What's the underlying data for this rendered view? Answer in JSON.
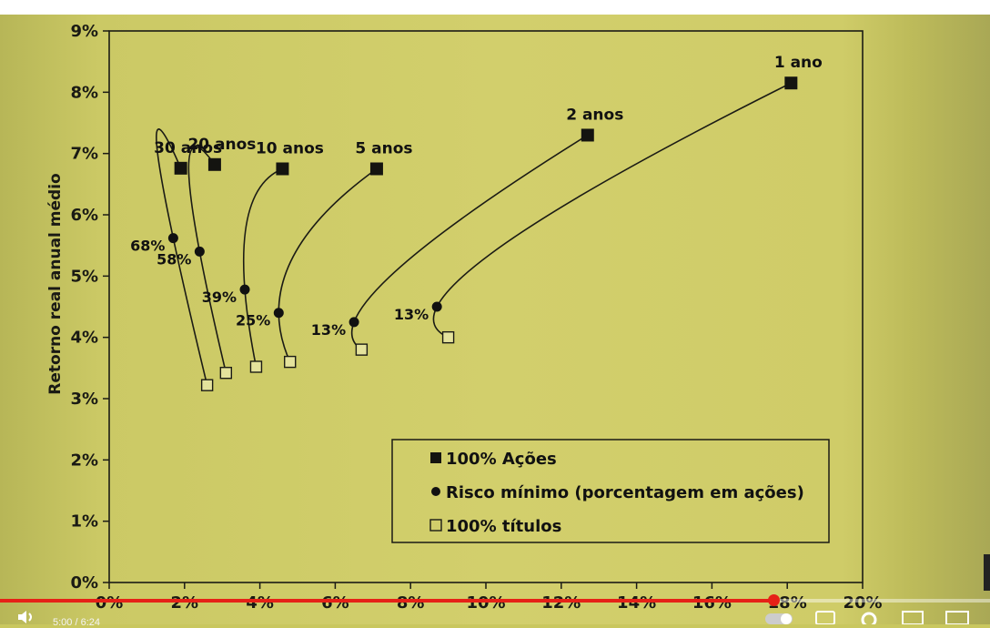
{
  "chart_data": {
    "type": "line",
    "title": "",
    "xlabel": "",
    "ylabel": "Retorno real anual médio",
    "xlim": [
      0,
      20
    ],
    "ylim": [
      0,
      9
    ],
    "x_ticks": [
      0,
      2,
      4,
      6,
      8,
      10,
      12,
      14,
      16,
      18,
      20
    ],
    "x_tick_labels": [
      "0%",
      "2%",
      "4%",
      "6%",
      "8%",
      "10%",
      "12%",
      "14%",
      "16%",
      "18%",
      "20%"
    ],
    "y_ticks": [
      0,
      1,
      2,
      3,
      4,
      5,
      6,
      7,
      8,
      9
    ],
    "y_tick_labels": [
      "0%",
      "1%",
      "2%",
      "3%",
      "4%",
      "5%",
      "6%",
      "7%",
      "8%",
      "9%"
    ],
    "grid": false,
    "legend_position": "bottom-right",
    "series": [
      {
        "name": "1 ano",
        "points": [
          [
            9.0,
            4.0
          ],
          [
            8.7,
            4.5
          ],
          [
            18.1,
            8.15
          ]
        ],
        "min_risk_label": "13%"
      },
      {
        "name": "2 anos",
        "points": [
          [
            6.7,
            3.8
          ],
          [
            6.5,
            4.25
          ],
          [
            12.7,
            7.3
          ]
        ],
        "min_risk_label": "13%"
      },
      {
        "name": "5 anos",
        "points": [
          [
            4.8,
            3.6
          ],
          [
            4.5,
            4.4
          ],
          [
            7.1,
            6.75
          ]
        ],
        "min_risk_label": "25%"
      },
      {
        "name": "10 anos",
        "points": [
          [
            3.9,
            3.52
          ],
          [
            3.6,
            4.78
          ],
          [
            4.6,
            6.75
          ]
        ],
        "min_risk_label": "39%"
      },
      {
        "name": "20 anos",
        "points": [
          [
            3.1,
            3.42
          ],
          [
            2.4,
            5.4
          ],
          [
            2.8,
            6.82
          ]
        ],
        "min_risk_label": "58%"
      },
      {
        "name": "30 anos",
        "points": [
          [
            2.6,
            3.22
          ],
          [
            1.7,
            5.62
          ],
          [
            1.9,
            6.76
          ]
        ],
        "min_risk_label": "68%"
      }
    ],
    "legend": [
      {
        "marker": "filled-square",
        "label": "100% Ações"
      },
      {
        "marker": "filled-circle",
        "label": "Risco mínimo (porcentagem em ações)"
      },
      {
        "marker": "open-square",
        "label": "100% títulos"
      }
    ]
  },
  "player": {
    "time": "5:00 / 6:24",
    "progress": 0.7813
  },
  "icons": {
    "volume": "volume-icon",
    "miniplayer": "miniplayer-icon",
    "captions": "captions-icon",
    "settings": "settings-icon",
    "theater": "theater-icon",
    "fullscreen": "fullscreen-icon"
  }
}
